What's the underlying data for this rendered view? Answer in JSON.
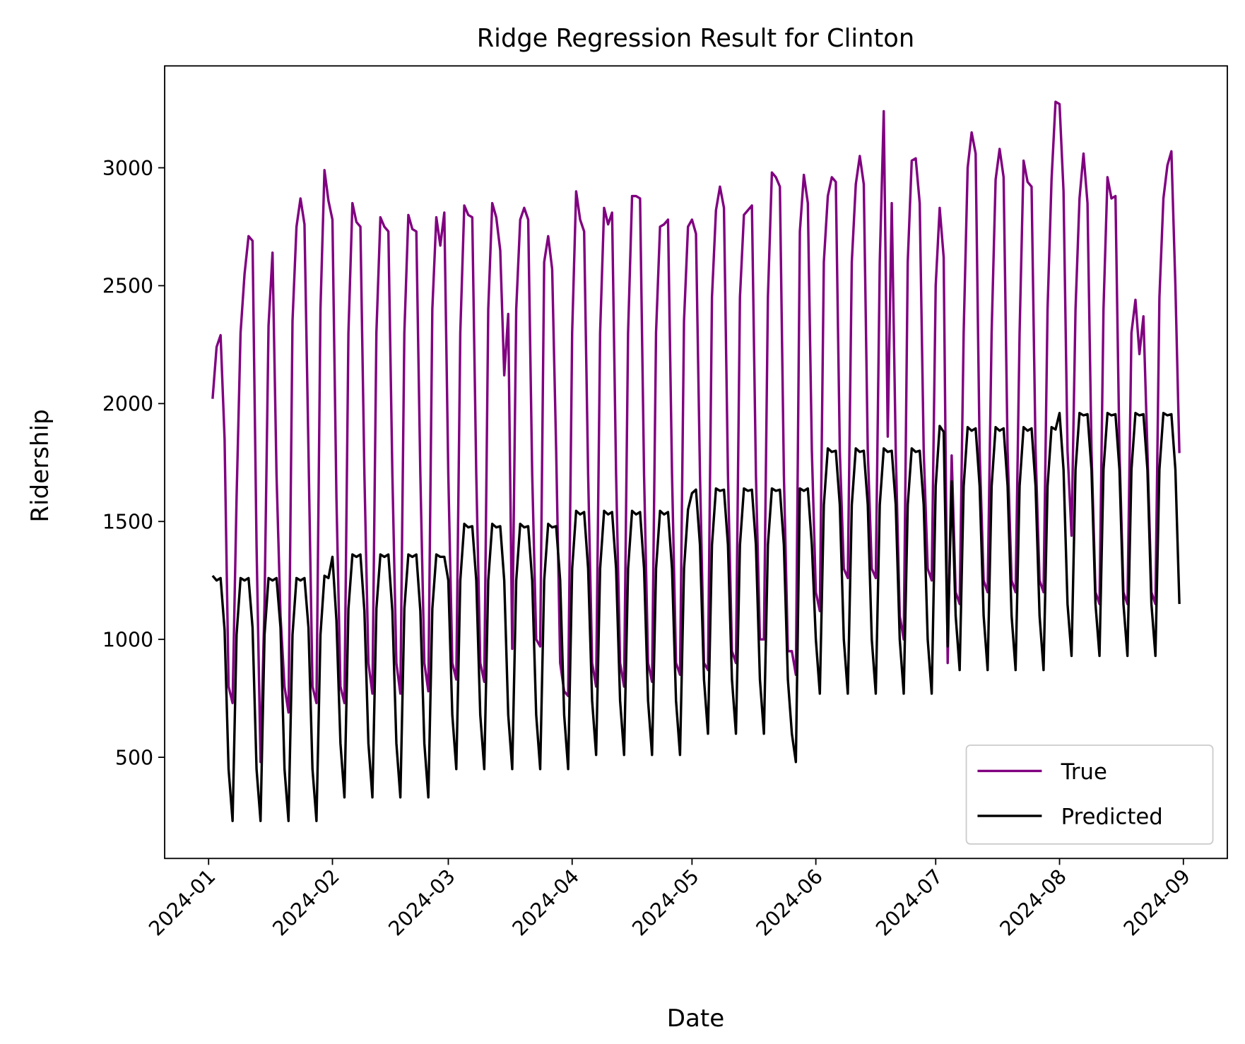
{
  "chart_data": {
    "type": "line",
    "title": "Ridge Regression Result for Clinton",
    "xlabel": "Date",
    "ylabel": "Ridership",
    "x": [
      1,
      2,
      3,
      4,
      5,
      6,
      7,
      8,
      9,
      10,
      11,
      12,
      13,
      14,
      15,
      16,
      17,
      18,
      19,
      20,
      21,
      22,
      23,
      24,
      25,
      26,
      27,
      28,
      29,
      30,
      31,
      32,
      33,
      34,
      35,
      36,
      37,
      38,
      39,
      40,
      41,
      42,
      43,
      44,
      45,
      46,
      47,
      48,
      49,
      50,
      51,
      52,
      53,
      54,
      55,
      56,
      57,
      58,
      59,
      60,
      61,
      62,
      63,
      64,
      65,
      66,
      67,
      68,
      69,
      70,
      71,
      72,
      73,
      74,
      75,
      76,
      77,
      78,
      79,
      80,
      81,
      82,
      83,
      84,
      85,
      86,
      87,
      88,
      89,
      90,
      91,
      92,
      93,
      94,
      95,
      96,
      97,
      98,
      99,
      100,
      101,
      102,
      103,
      104,
      105,
      106,
      107,
      108,
      109,
      110,
      111,
      112,
      113,
      114,
      115,
      116,
      117,
      118,
      119,
      120,
      121,
      122,
      123,
      124,
      125,
      126,
      127,
      128,
      129,
      130,
      131,
      132,
      133,
      134,
      135,
      136,
      137,
      138,
      139,
      140,
      141,
      142,
      143,
      144,
      145,
      146,
      147,
      148,
      149,
      150,
      151,
      152,
      153,
      154,
      155,
      156,
      157,
      158,
      159,
      160,
      161,
      162,
      163,
      164,
      165,
      166,
      167,
      168,
      169,
      170,
      171,
      172,
      173,
      174,
      175,
      176,
      177,
      178,
      179,
      180,
      181,
      182,
      183,
      184,
      185,
      186,
      187,
      188,
      189,
      190,
      191,
      192,
      193,
      194,
      195,
      196,
      197,
      198,
      199,
      200,
      201,
      202,
      203,
      204,
      205,
      206,
      207,
      208,
      209,
      210,
      211,
      212,
      213,
      214,
      215,
      216,
      217,
      218,
      219,
      220,
      221,
      222,
      223,
      224,
      225,
      226,
      227,
      228,
      229,
      230,
      231,
      232,
      233,
      234,
      235,
      236,
      237,
      238,
      239,
      240,
      241,
      242,
      243
    ],
    "series": [
      {
        "name": "True",
        "color": "#800080",
        "values": [
          2020,
          2240,
          2290,
          1850,
          800,
          730,
          1600,
          2300,
          2550,
          2710,
          2690,
          1400,
          480,
          1150,
          2330,
          2640,
          1700,
          1100,
          800,
          690,
          2350,
          2750,
          2870,
          2760,
          1800,
          800,
          730,
          2400,
          2990,
          2860,
          2780,
          1600,
          800,
          730,
          2300,
          2850,
          2770,
          2750,
          1700,
          900,
          770,
          2300,
          2790,
          2750,
          2730,
          1700,
          900,
          770,
          2300,
          2800,
          2740,
          2730,
          1700,
          900,
          780,
          2400,
          2790,
          2670,
          2810,
          1700,
          900,
          830,
          2300,
          2840,
          2800,
          2790,
          1700,
          900,
          820,
          2400,
          2850,
          2790,
          2650,
          2120,
          2380,
          960,
          2400,
          2780,
          2830,
          2780,
          1700,
          1000,
          970,
          2600,
          2710,
          2570,
          1800,
          900,
          780,
          760,
          2300,
          2900,
          2780,
          2730,
          1700,
          900,
          800,
          2300,
          2830,
          2760,
          2810,
          1700,
          900,
          800,
          2300,
          2880,
          2880,
          2870,
          1700,
          900,
          820,
          2300,
          2750,
          2760,
          2780,
          1700,
          900,
          850,
          2350,
          2750,
          2780,
          2720,
          1700,
          900,
          870,
          2450,
          2820,
          2920,
          2830,
          1700,
          950,
          900,
          2450,
          2800,
          2820,
          2840,
          1700,
          1000,
          1000,
          2450,
          2980,
          2960,
          2920,
          1700,
          950,
          950,
          850,
          2730,
          2970,
          2850,
          1800,
          1200,
          1120,
          2600,
          2880,
          2960,
          2940,
          1800,
          1300,
          1260,
          2600,
          2930,
          3050,
          2930,
          1800,
          1300,
          1260,
          2600,
          3240,
          1860,
          2850,
          1800,
          1100,
          1000,
          2600,
          3030,
          3040,
          2850,
          1800,
          1300,
          1250,
          2500,
          2830,
          2620,
          900,
          1780,
          1200,
          1150,
          2300,
          3000,
          3150,
          3060,
          1800,
          1250,
          1200,
          2300,
          2950,
          3080,
          2960,
          1800,
          1250,
          1200,
          2300,
          3030,
          2940,
          2920,
          1800,
          1250,
          1200,
          2400,
          2950,
          3280,
          3270,
          2900,
          1800,
          1440,
          2400,
          2870,
          3060,
          2850,
          1800,
          1200,
          1150,
          2400,
          2960,
          2870,
          2880,
          1800,
          1200,
          1150,
          2300,
          2440,
          2210,
          2370,
          1800,
          1200,
          1150,
          2450,
          2870,
          3010,
          3070,
          2500,
          1790
        ]
      },
      {
        "name": "Predicted",
        "color": "#000000",
        "values": [
          1270,
          1250,
          1260,
          1040,
          450,
          230,
          1020,
          1260,
          1250,
          1260,
          1050,
          450,
          230,
          1020,
          1260,
          1250,
          1260,
          1050,
          450,
          230,
          1020,
          1260,
          1250,
          1260,
          1050,
          450,
          230,
          1020,
          1270,
          1260,
          1350,
          1080,
          560,
          330,
          1130,
          1360,
          1350,
          1360,
          1120,
          560,
          330,
          1130,
          1360,
          1350,
          1360,
          1120,
          560,
          330,
          1130,
          1360,
          1350,
          1360,
          1120,
          560,
          330,
          1130,
          1360,
          1350,
          1350,
          1250,
          680,
          450,
          1250,
          1490,
          1475,
          1480,
          1250,
          680,
          450,
          1250,
          1490,
          1475,
          1480,
          1250,
          680,
          450,
          1250,
          1490,
          1475,
          1480,
          1250,
          680,
          450,
          1250,
          1490,
          1475,
          1480,
          1250,
          680,
          450,
          1300,
          1545,
          1530,
          1540,
          1300,
          740,
          510,
          1300,
          1545,
          1530,
          1540,
          1300,
          740,
          510,
          1300,
          1545,
          1530,
          1540,
          1300,
          740,
          510,
          1300,
          1545,
          1530,
          1540,
          1300,
          740,
          510,
          1300,
          1550,
          1620,
          1635,
          1400,
          830,
          600,
          1400,
          1640,
          1630,
          1635,
          1400,
          830,
          600,
          1400,
          1640,
          1630,
          1635,
          1400,
          830,
          600,
          1400,
          1640,
          1630,
          1635,
          1400,
          830,
          600,
          480,
          1640,
          1630,
          1640,
          1400,
          1000,
          770,
          1570,
          1810,
          1795,
          1800,
          1570,
          1000,
          770,
          1570,
          1810,
          1795,
          1800,
          1570,
          1000,
          770,
          1570,
          1810,
          1795,
          1800,
          1570,
          1000,
          770,
          1570,
          1810,
          1795,
          1800,
          1570,
          1000,
          770,
          1650,
          1905,
          1880,
          970,
          1670,
          1100,
          870,
          1650,
          1900,
          1885,
          1895,
          1650,
          1100,
          870,
          1650,
          1900,
          1885,
          1895,
          1650,
          1100,
          870,
          1650,
          1900,
          1885,
          1895,
          1650,
          1100,
          870,
          1650,
          1900,
          1890,
          1960,
          1720,
          1150,
          930,
          1720,
          1960,
          1950,
          1955,
          1720,
          1150,
          930,
          1720,
          1960,
          1950,
          1955,
          1720,
          1150,
          930,
          1720,
          1960,
          1950,
          1955,
          1720,
          1150,
          930,
          1720,
          1960,
          1950,
          1955,
          1720,
          1150
        ]
      }
    ],
    "xlim": [
      -11,
      255
    ],
    "xticks": [
      {
        "value": 0,
        "label": "2024-01"
      },
      {
        "value": 31,
        "label": "2024-02"
      },
      {
        "value": 60,
        "label": "2024-03"
      },
      {
        "value": 91,
        "label": "2024-04"
      },
      {
        "value": 121,
        "label": "2024-05"
      },
      {
        "value": 152,
        "label": "2024-06"
      },
      {
        "value": 182,
        "label": "2024-07"
      },
      {
        "value": 213,
        "label": "2024-08"
      },
      {
        "value": 244,
        "label": "2024-09"
      }
    ],
    "ylim": [
      71,
      3432
    ],
    "yticks": [
      500,
      1000,
      1500,
      2000,
      2500,
      3000
    ],
    "grid": false,
    "legend": "lower right"
  }
}
